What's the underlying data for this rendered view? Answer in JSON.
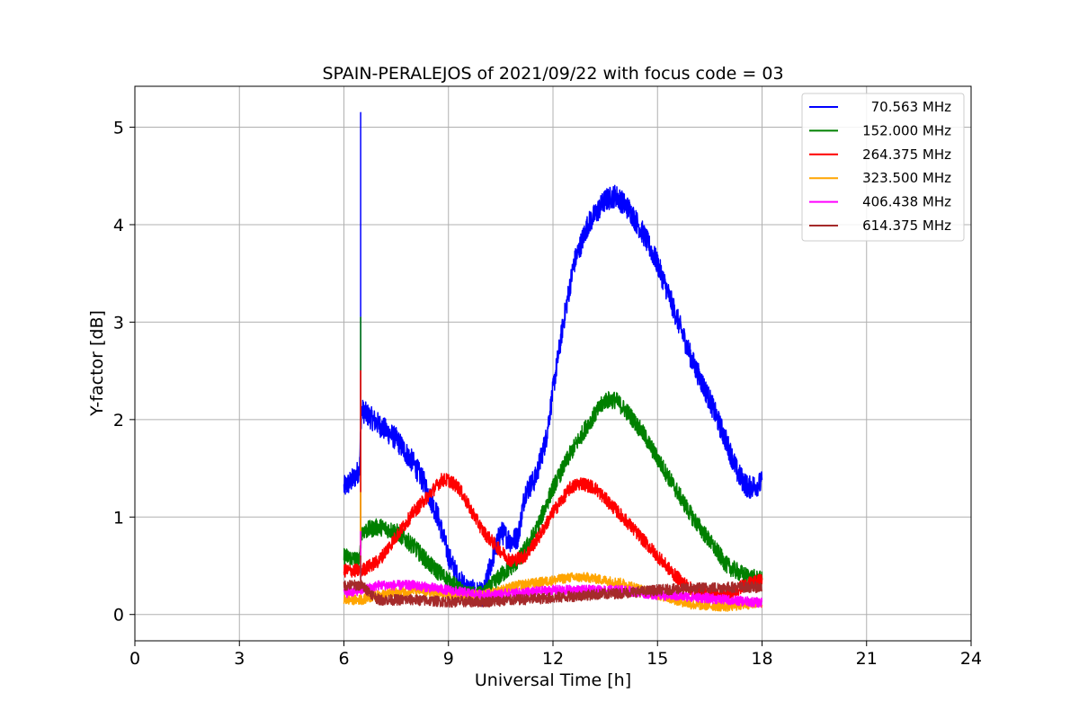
{
  "chart_data": {
    "type": "line",
    "title": "SPAIN-PERALEJOS of 2021/09/22 with focus code = 03",
    "xlabel": "Universal Time [h]",
    "ylabel": "Y-factor [dB]",
    "xlim": [
      0,
      24
    ],
    "ylim": [
      -0.27,
      5.42
    ],
    "xticks": [
      0,
      3,
      6,
      9,
      12,
      15,
      18,
      21,
      24
    ],
    "yticks": [
      0,
      1,
      2,
      3,
      4,
      5
    ],
    "grid": true,
    "legend_position": "top-right",
    "spike": {
      "x": 6.48,
      "peaks": [
        5.15,
        3.05,
        2.5,
        1.25,
        0.85,
        0.6
      ]
    },
    "series": [
      {
        "name": "70.563 MHz",
        "color": "#0000ff",
        "noise": 0.12,
        "x": [
          6.0,
          6.3,
          6.45,
          6.5,
          7.0,
          7.5,
          8.0,
          8.3,
          8.7,
          9.0,
          9.3,
          9.6,
          10.0,
          10.2,
          10.5,
          10.8,
          11.0,
          11.2,
          11.5,
          11.8,
          12.0,
          12.3,
          12.6,
          13.0,
          13.5,
          13.8,
          14.2,
          14.6,
          15.0,
          15.5,
          16.0,
          16.5,
          17.0,
          17.3,
          17.6,
          18.0
        ],
        "values": [
          1.3,
          1.4,
          1.5,
          2.1,
          1.95,
          1.8,
          1.55,
          1.35,
          1.0,
          0.6,
          0.35,
          0.25,
          0.2,
          0.5,
          0.85,
          0.75,
          0.8,
          1.25,
          1.4,
          1.8,
          2.3,
          3.0,
          3.6,
          4.0,
          4.25,
          4.3,
          4.15,
          3.9,
          3.6,
          3.1,
          2.6,
          2.2,
          1.75,
          1.45,
          1.3,
          1.35
        ]
      },
      {
        "name": "152.000 MHz",
        "color": "#008000",
        "noise": 0.09,
        "x": [
          6.0,
          6.45,
          6.5,
          7.0,
          7.5,
          8.0,
          8.5,
          9.0,
          9.5,
          10.0,
          10.5,
          11.0,
          11.5,
          12.0,
          12.5,
          13.0,
          13.5,
          13.8,
          14.2,
          14.6,
          15.0,
          15.5,
          16.0,
          16.5,
          17.0,
          17.5,
          18.0
        ],
        "values": [
          0.6,
          0.55,
          0.85,
          0.9,
          0.85,
          0.7,
          0.5,
          0.35,
          0.2,
          0.2,
          0.4,
          0.55,
          0.85,
          1.3,
          1.65,
          1.95,
          2.2,
          2.2,
          2.05,
          1.85,
          1.6,
          1.3,
          1.0,
          0.75,
          0.5,
          0.4,
          0.35
        ]
      },
      {
        "name": "264.375 MHz",
        "color": "#ff0000",
        "noise": 0.07,
        "x": [
          6.0,
          6.5,
          7.0,
          7.5,
          8.0,
          8.5,
          8.8,
          9.0,
          9.3,
          9.6,
          10.0,
          10.5,
          10.8,
          11.2,
          11.6,
          12.0,
          12.5,
          12.8,
          13.2,
          13.6,
          14.0,
          14.5,
          15.0,
          15.5,
          16.0,
          16.5,
          17.0,
          17.5,
          18.0
        ],
        "values": [
          0.45,
          0.45,
          0.55,
          0.8,
          1.05,
          1.25,
          1.38,
          1.38,
          1.3,
          1.1,
          0.85,
          0.65,
          0.55,
          0.6,
          0.8,
          1.05,
          1.3,
          1.35,
          1.3,
          1.15,
          1.0,
          0.8,
          0.6,
          0.4,
          0.25,
          0.2,
          0.2,
          0.3,
          0.35
        ]
      },
      {
        "name": "323.500 MHz",
        "color": "#ffa500",
        "noise": 0.05,
        "x": [
          6.0,
          6.5,
          7.0,
          8.0,
          9.0,
          10.0,
          11.0,
          12.0,
          12.5,
          13.0,
          14.0,
          15.0,
          16.0,
          17.0,
          18.0
        ],
        "values": [
          0.15,
          0.15,
          0.2,
          0.25,
          0.2,
          0.2,
          0.3,
          0.35,
          0.38,
          0.38,
          0.32,
          0.2,
          0.1,
          0.08,
          0.12
        ]
      },
      {
        "name": "406.438 MHz",
        "color": "#ff00ff",
        "noise": 0.05,
        "x": [
          6.0,
          6.5,
          7.0,
          8.0,
          9.0,
          10.0,
          11.0,
          12.0,
          13.0,
          14.0,
          15.0,
          16.0,
          17.0,
          18.0
        ],
        "values": [
          0.22,
          0.25,
          0.3,
          0.3,
          0.25,
          0.2,
          0.22,
          0.25,
          0.25,
          0.25,
          0.2,
          0.18,
          0.15,
          0.12
        ]
      },
      {
        "name": "614.375 MHz",
        "color": "#a52a2a",
        "noise": 0.055,
        "x": [
          6.0,
          6.5,
          7.0,
          8.0,
          9.0,
          10.0,
          11.0,
          12.0,
          13.0,
          14.0,
          15.0,
          16.0,
          17.0,
          18.0
        ],
        "values": [
          0.3,
          0.3,
          0.15,
          0.15,
          0.13,
          0.13,
          0.15,
          0.17,
          0.2,
          0.22,
          0.25,
          0.27,
          0.28,
          0.28
        ]
      }
    ]
  }
}
